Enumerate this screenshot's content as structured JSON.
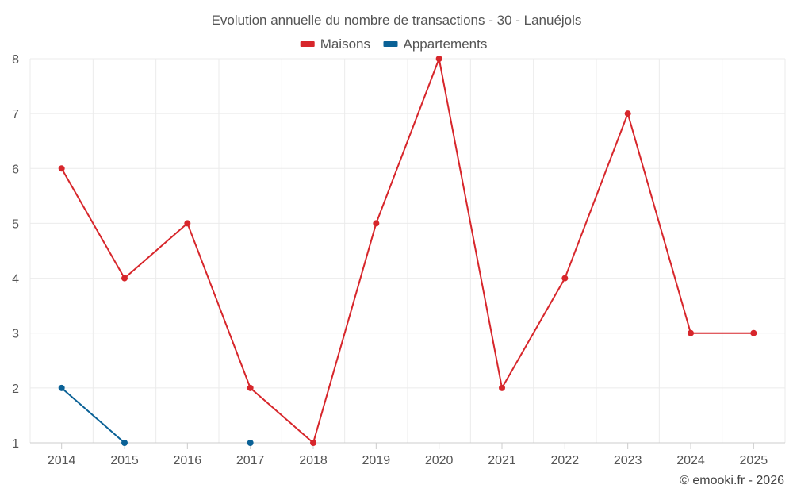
{
  "chart_data": {
    "type": "line",
    "title": "Evolution annuelle du nombre de transactions - 30 - Lanuéjols",
    "xlabel": "",
    "ylabel": "",
    "categories": [
      "2014",
      "2015",
      "2016",
      "2017",
      "2018",
      "2019",
      "2020",
      "2021",
      "2022",
      "2023",
      "2024",
      "2025"
    ],
    "yticks": [
      1,
      2,
      3,
      4,
      5,
      6,
      7,
      8
    ],
    "ylim": [
      1,
      8
    ],
    "grid": true,
    "legend_position": "top-center",
    "series": [
      {
        "name": "Maisons",
        "color": "#d7262b",
        "values": [
          6,
          4,
          5,
          2,
          1,
          5,
          8,
          2,
          4,
          7,
          3,
          3
        ]
      },
      {
        "name": "Appartements",
        "color": "#0a6196",
        "values": [
          2,
          1,
          null,
          1,
          null,
          null,
          null,
          null,
          null,
          null,
          null,
          null
        ]
      }
    ]
  },
  "credit": "© emooki.fr - 2026"
}
